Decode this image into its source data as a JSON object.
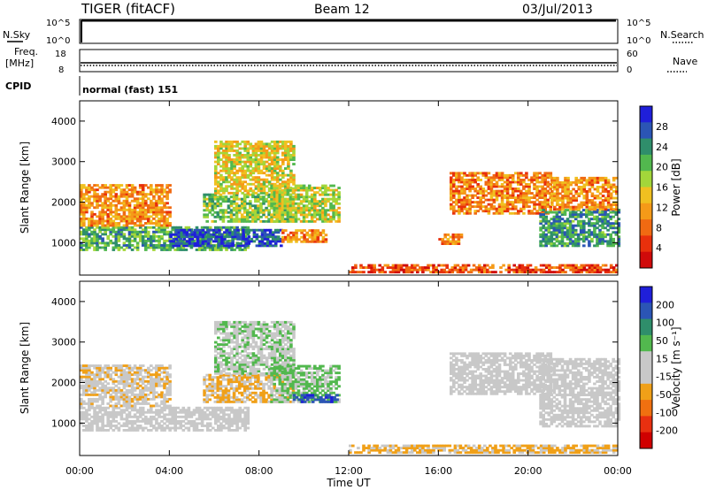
{
  "header": {
    "title": "TIGER (fitACF)",
    "beam": "Beam 12",
    "date": "03/Jul/2013"
  },
  "summary": {
    "nsky_label": "N.Sky",
    "nsky_ticks": [
      "10^5",
      "10^0"
    ],
    "nsearch_label": "N.Search",
    "freq_label": "Freq.",
    "freq_unit": "[MHz]",
    "freq_ticks": [
      "18",
      "8"
    ],
    "nave_label": "Nave",
    "nave_ticks": [
      "60",
      "0"
    ],
    "cpid_label": "CPID",
    "cpid_value": "normal (fast) 151"
  },
  "colors": {
    "power": [
      "#1f1fd9",
      "#2b55b5",
      "#2f8e6b",
      "#52b84e",
      "#a3d63a",
      "#f0c020",
      "#f59a18",
      "#f06a12",
      "#e8300c",
      "#d00a0a"
    ],
    "velocity": [
      "#1f1fd9",
      "#2b55b5",
      "#2f8e6b",
      "#52b84e",
      "#c8c8c8",
      "#c8c8c8",
      "#f0a018",
      "#f07010",
      "#e83010",
      "#d00000"
    ]
  },
  "chart_data": [
    {
      "type": "heatmap",
      "panel": "power",
      "ylabel": "Slant Range [km]",
      "xlabel": "Time UT",
      "ylim": [
        200,
        4500
      ],
      "xlim": [
        "00:00",
        "24:00"
      ],
      "x_ticks": [
        "00:00",
        "04:00",
        "08:00",
        "12:00",
        "16:00",
        "20:00",
        "00:00"
      ],
      "y_ticks": [
        1000,
        2000,
        3000,
        4000
      ],
      "colorbar": {
        "label": "Power [dB]",
        "ticks": [
          28,
          24,
          20,
          16,
          12,
          8,
          4
        ],
        "range": [
          0,
          30
        ]
      },
      "regions": [
        {
          "t": [
            0,
            7.5
          ],
          "r": [
            800,
            1400
          ],
          "value": 20
        },
        {
          "t": [
            4,
            9
          ],
          "r": [
            900,
            1300
          ],
          "value": 26
        },
        {
          "t": [
            0,
            4
          ],
          "r": [
            1400,
            2400
          ],
          "value": 10
        },
        {
          "t": [
            5.5,
            9.5
          ],
          "r": [
            1500,
            2200
          ],
          "value": 18
        },
        {
          "t": [
            6,
            9.5
          ],
          "r": [
            2200,
            3500
          ],
          "value": 14
        },
        {
          "t": [
            8.5,
            11.5
          ],
          "r": [
            1500,
            2400
          ],
          "value": 16
        },
        {
          "t": [
            9,
            11
          ],
          "r": [
            1000,
            1300
          ],
          "value": 10
        },
        {
          "t": [
            16,
            17
          ],
          "r": [
            950,
            1200
          ],
          "value": 9
        },
        {
          "t": [
            16.5,
            21
          ],
          "r": [
            1700,
            2700
          ],
          "value": 9
        },
        {
          "t": [
            20.5,
            24
          ],
          "r": [
            900,
            1800
          ],
          "value": 22
        },
        {
          "t": [
            21,
            24
          ],
          "r": [
            1800,
            2600
          ],
          "value": 10
        },
        {
          "t": [
            12,
            24
          ],
          "r": [
            250,
            450
          ],
          "value": 6
        }
      ]
    },
    {
      "type": "heatmap",
      "panel": "velocity",
      "ylabel": "Slant Range [km]",
      "xlabel": "Time UT",
      "ylim": [
        200,
        4500
      ],
      "xlim": [
        "00:00",
        "24:00"
      ],
      "x_ticks": [
        "00:00",
        "04:00",
        "08:00",
        "12:00",
        "16:00",
        "20:00",
        "00:00"
      ],
      "y_ticks": [
        1000,
        2000,
        3000,
        4000
      ],
      "colorbar": {
        "label": "Velocity [m s⁻¹]",
        "ticks": [
          200,
          100,
          50,
          15,
          -15,
          -50,
          -100,
          -200
        ],
        "range": [
          -250,
          250
        ]
      },
      "regions": [
        {
          "t": [
            0,
            7.5
          ],
          "r": [
            800,
            1400
          ],
          "value": 0
        },
        {
          "t": [
            0,
            4
          ],
          "r": [
            1400,
            2400
          ],
          "value": -30
        },
        {
          "t": [
            5.5,
            9.5
          ],
          "r": [
            1500,
            2200
          ],
          "value": -60
        },
        {
          "t": [
            6,
            9.5
          ],
          "r": [
            2200,
            3500
          ],
          "value": 40
        },
        {
          "t": [
            8.5,
            11.5
          ],
          "r": [
            1500,
            2400
          ],
          "value": 60
        },
        {
          "t": [
            9.5,
            11.5
          ],
          "r": [
            1500,
            1700
          ],
          "value": 180
        },
        {
          "t": [
            16.5,
            21
          ],
          "r": [
            1700,
            2700
          ],
          "value": 0
        },
        {
          "t": [
            20.5,
            24
          ],
          "r": [
            900,
            2600
          ],
          "value": 10
        },
        {
          "t": [
            12,
            24
          ],
          "r": [
            250,
            450
          ],
          "value": -60
        }
      ]
    }
  ]
}
